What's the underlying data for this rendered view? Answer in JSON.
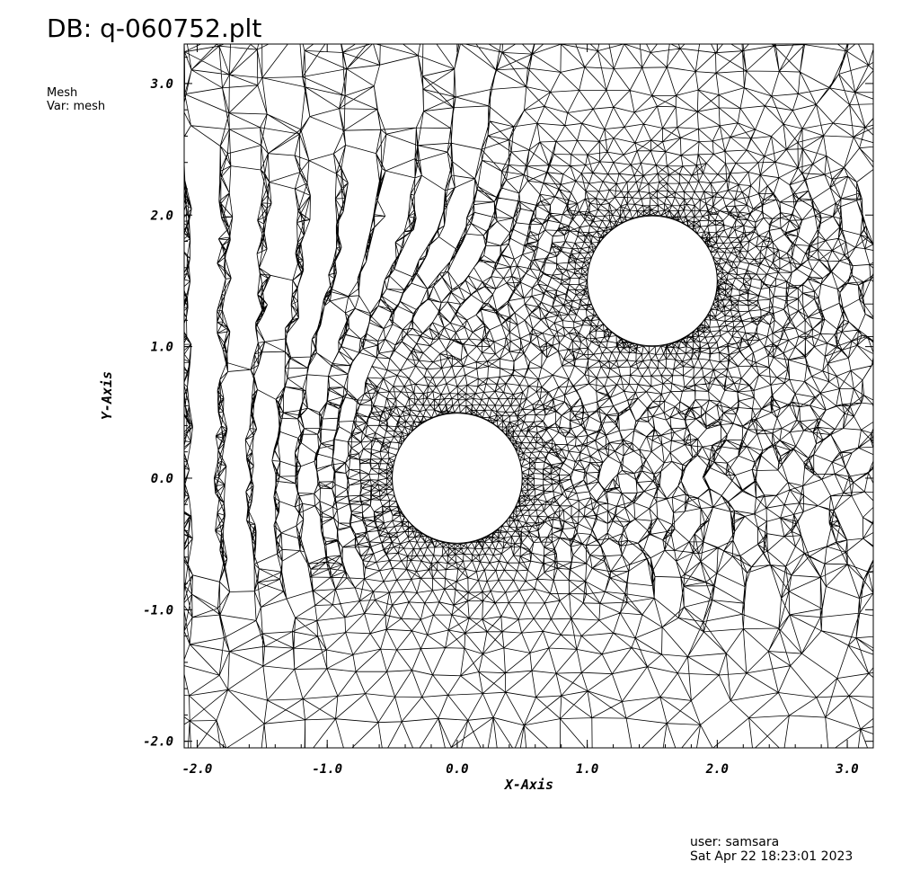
{
  "header": {
    "title": "DB: q-060752.plt"
  },
  "legend": {
    "plot_type": "Mesh",
    "variable": "Var: mesh"
  },
  "footer": {
    "user": "user: samsara",
    "timestamp": "Sat Apr 22 18:23:01 2023"
  },
  "chart_data": {
    "type": "mesh",
    "xlabel": "X-Axis",
    "ylabel": "Y-Axis",
    "xlim": [
      -2.1,
      3.2
    ],
    "ylim": [
      -2.05,
      3.3
    ],
    "x_ticks": [
      -2.0,
      -1.0,
      0.0,
      1.0,
      2.0,
      3.0
    ],
    "y_ticks": [
      -2.0,
      -1.0,
      0.0,
      1.0,
      2.0,
      3.0
    ],
    "x_tick_labels": [
      "-2.0",
      "-1.0",
      "0.0",
      "1.0",
      "2.0",
      "3.0"
    ],
    "y_tick_labels": [
      "-2.0",
      "-1.0",
      "0.0",
      "1.0",
      "2.0",
      "3.0"
    ],
    "holes": [
      {
        "cx": 0.0,
        "cy": 0.0,
        "r": 0.5
      },
      {
        "cx": 1.5,
        "cy": 1.5,
        "r": 0.5
      }
    ],
    "mesh_color": "#000000"
  }
}
